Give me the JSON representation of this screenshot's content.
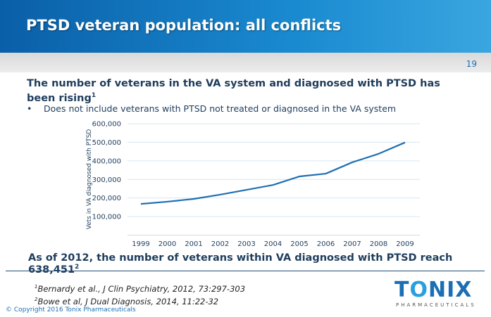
{
  "title": "PTSD veteran population: all conflicts",
  "page_number": "19",
  "headline": "The number of veterans in the VA system and diagnosed with PTSD has been rising",
  "headline_sup": "1",
  "bullet": "Does not include veterans with PTSD not treated or diagnosed in the VA system",
  "bottomline": "As of 2012, the number of veterans within VA diagnosed with PTSD reach 638,451",
  "bottomline_sup": "2",
  "references": [
    {
      "sup": "1",
      "text": "Bernardy et al., J Clin Psychiatry, 2012, 73:297-303"
    },
    {
      "sup": "2",
      "text": "Bowe et al, J Dual Diagnosis, 2014, 11:22-32"
    }
  ],
  "copyright": "© Copyright 2016 Tonix Pharmaceuticals",
  "logo": {
    "word": "TONIX",
    "sub": "PHARMACEUTICALS"
  },
  "chart_data": {
    "type": "line",
    "title": "",
    "xlabel": "",
    "ylabel": "Vets in VA diagnosed with PTSD",
    "categories": [
      "1999",
      "2000",
      "2001",
      "2002",
      "2003",
      "2004",
      "2005",
      "2006",
      "2007",
      "2008",
      "2009"
    ],
    "values": [
      168000,
      180000,
      195000,
      218000,
      244000,
      270000,
      316000,
      331000,
      392000,
      438000,
      499000
    ],
    "ylim": [
      0,
      600000
    ],
    "yticks": [
      100000,
      200000,
      300000,
      400000,
      500000,
      600000
    ],
    "ytick_labels": [
      "100,000",
      "200,000",
      "300,000",
      "400,000",
      "500,000",
      "600,000"
    ],
    "grid": true,
    "color": "#1f6fb2"
  }
}
